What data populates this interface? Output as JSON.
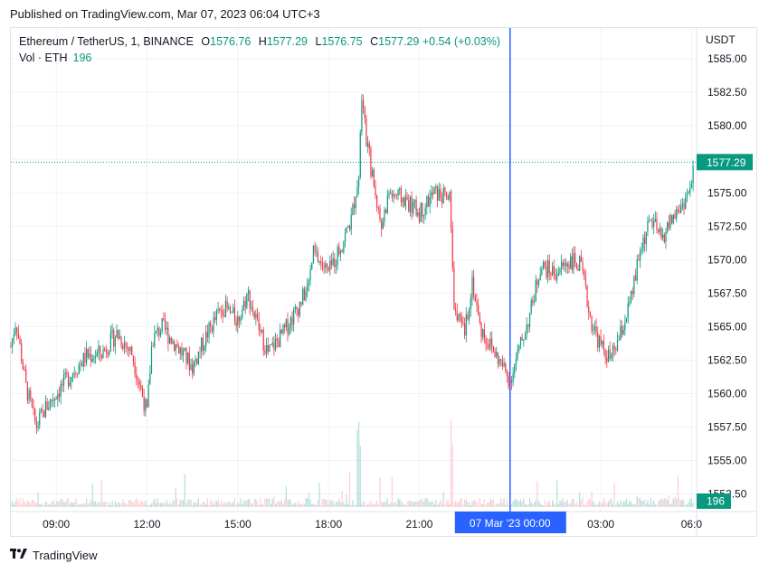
{
  "header": {
    "published": "Published on TradingView.com, Mar 07, 2023 06:04 UTC+3"
  },
  "legend": {
    "symbol": "Ethereum / TetherUS, 1, BINANCE",
    "o_label": "O",
    "o_value": "1576.76",
    "h_label": "H",
    "h_value": "1577.29",
    "l_label": "L",
    "l_value": "1576.75",
    "c_label": "C",
    "c_value": "1577.29",
    "change": "+0.54 (+0.03%)",
    "vol_label": "Vol · ETH",
    "vol_value": "196"
  },
  "axis": {
    "currency": "USDT"
  },
  "colors": {
    "up": "#089981",
    "down": "#f23645",
    "crosshair": "#2962ff",
    "grid": "#f0f3fa",
    "volume_up": "#b2dfdb",
    "volume_down": "#ffcdd2"
  },
  "footer": {
    "logo_icon": "tradingview-logo-icon",
    "brand": "TradingView"
  },
  "chart_data": {
    "type": "candlestick",
    "instrument": "Ethereum / TetherUS, 1, BINANCE",
    "interval_minutes": 1,
    "y_ticks": [
      "1585.00",
      "1582.50",
      "1580.00",
      "1577.50",
      "1575.00",
      "1572.50",
      "1570.00",
      "1567.50",
      "1565.00",
      "1562.50",
      "1560.00",
      "1557.50",
      "1555.00",
      "1552.50"
    ],
    "ylim": [
      1552.5,
      1585.0
    ],
    "x_ticks": [
      "09:00",
      "12:00",
      "15:00",
      "18:00",
      "21:00",
      "00:00",
      "03:00",
      "06:0"
    ],
    "crosshair_label": "07 Mar '23   00:00",
    "last_price": "1577.29",
    "last_volume": "196",
    "approx_price_path": [
      {
        "t": "07:30",
        "p": 1563.5
      },
      {
        "t": "07:40",
        "p": 1565.5
      },
      {
        "t": "08:00",
        "p": 1560.5
      },
      {
        "t": "08:20",
        "p": 1557.5
      },
      {
        "t": "08:40",
        "p": 1559.0
      },
      {
        "t": "09:00",
        "p": 1560.0
      },
      {
        "t": "09:30",
        "p": 1561.5
      },
      {
        "t": "10:00",
        "p": 1562.8
      },
      {
        "t": "10:30",
        "p": 1563.0
      },
      {
        "t": "11:00",
        "p": 1564.5
      },
      {
        "t": "11:30",
        "p": 1563.0
      },
      {
        "t": "12:00",
        "p": 1558.5
      },
      {
        "t": "12:10",
        "p": 1564.0
      },
      {
        "t": "12:30",
        "p": 1565.0
      },
      {
        "t": "13:00",
        "p": 1563.5
      },
      {
        "t": "13:30",
        "p": 1562.0
      },
      {
        "t": "14:00",
        "p": 1564.5
      },
      {
        "t": "14:30",
        "p": 1566.5
      },
      {
        "t": "15:00",
        "p": 1565.5
      },
      {
        "t": "15:20",
        "p": 1567.5
      },
      {
        "t": "15:40",
        "p": 1565.0
      },
      {
        "t": "16:00",
        "p": 1563.0
      },
      {
        "t": "16:30",
        "p": 1564.5
      },
      {
        "t": "17:00",
        "p": 1566.5
      },
      {
        "t": "17:20",
        "p": 1568.0
      },
      {
        "t": "17:30",
        "p": 1570.5
      },
      {
        "t": "18:00",
        "p": 1569.0
      },
      {
        "t": "18:30",
        "p": 1571.5
      },
      {
        "t": "18:45",
        "p": 1573.0
      },
      {
        "t": "19:00",
        "p": 1576.5
      },
      {
        "t": "19:05",
        "p": 1582.0
      },
      {
        "t": "19:15",
        "p": 1579.0
      },
      {
        "t": "19:30",
        "p": 1575.5
      },
      {
        "t": "19:45",
        "p": 1572.5
      },
      {
        "t": "20:00",
        "p": 1575.0
      },
      {
        "t": "20:30",
        "p": 1574.5
      },
      {
        "t": "21:00",
        "p": 1573.5
      },
      {
        "t": "21:30",
        "p": 1575.0
      },
      {
        "t": "22:00",
        "p": 1574.5
      },
      {
        "t": "22:10",
        "p": 1566.0
      },
      {
        "t": "22:30",
        "p": 1564.5
      },
      {
        "t": "22:45",
        "p": 1568.5
      },
      {
        "t": "23:00",
        "p": 1565.0
      },
      {
        "t": "23:30",
        "p": 1563.0
      },
      {
        "t": "00:00",
        "p": 1561.0
      },
      {
        "t": "00:20",
        "p": 1563.5
      },
      {
        "t": "00:40",
        "p": 1566.0
      },
      {
        "t": "01:00",
        "p": 1569.5
      },
      {
        "t": "01:30",
        "p": 1569.0
      },
      {
        "t": "02:00",
        "p": 1570.0
      },
      {
        "t": "02:20",
        "p": 1569.5
      },
      {
        "t": "02:40",
        "p": 1565.5
      },
      {
        "t": "03:00",
        "p": 1563.5
      },
      {
        "t": "03:20",
        "p": 1562.5
      },
      {
        "t": "03:40",
        "p": 1564.5
      },
      {
        "t": "04:00",
        "p": 1567.0
      },
      {
        "t": "04:20",
        "p": 1571.0
      },
      {
        "t": "04:40",
        "p": 1573.0
      },
      {
        "t": "05:00",
        "p": 1571.5
      },
      {
        "t": "05:20",
        "p": 1573.0
      },
      {
        "t": "05:40",
        "p": 1574.0
      },
      {
        "t": "06:00",
        "p": 1575.5
      },
      {
        "t": "06:04",
        "p": 1577.29
      }
    ],
    "grid": true
  }
}
